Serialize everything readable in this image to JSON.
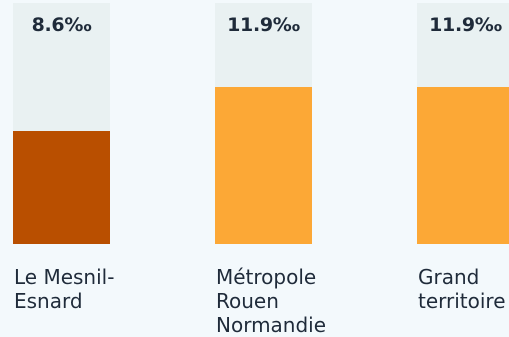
{
  "chart_data": {
    "type": "bar",
    "categories": [
      "Le Mesnil-\nEsnard",
      "Métropole\nRouen\nNormandie",
      "Grand\nterritoire"
    ],
    "values": [
      8.6,
      11.9,
      11.9
    ],
    "value_labels": [
      "8.6‰",
      "11.9‰",
      "11.9‰"
    ],
    "unit": "‰",
    "ylim": [
      0,
      18.3
    ],
    "grid": false,
    "legend": "none",
    "title": "",
    "xlabel": "",
    "ylabel": ""
  },
  "colors": {
    "background": "#f3f9fc",
    "column_background": "#e9f1f2",
    "highlight_bar": "#b94f00",
    "other_bar": "#fca836",
    "text": "#1f2b3a"
  }
}
